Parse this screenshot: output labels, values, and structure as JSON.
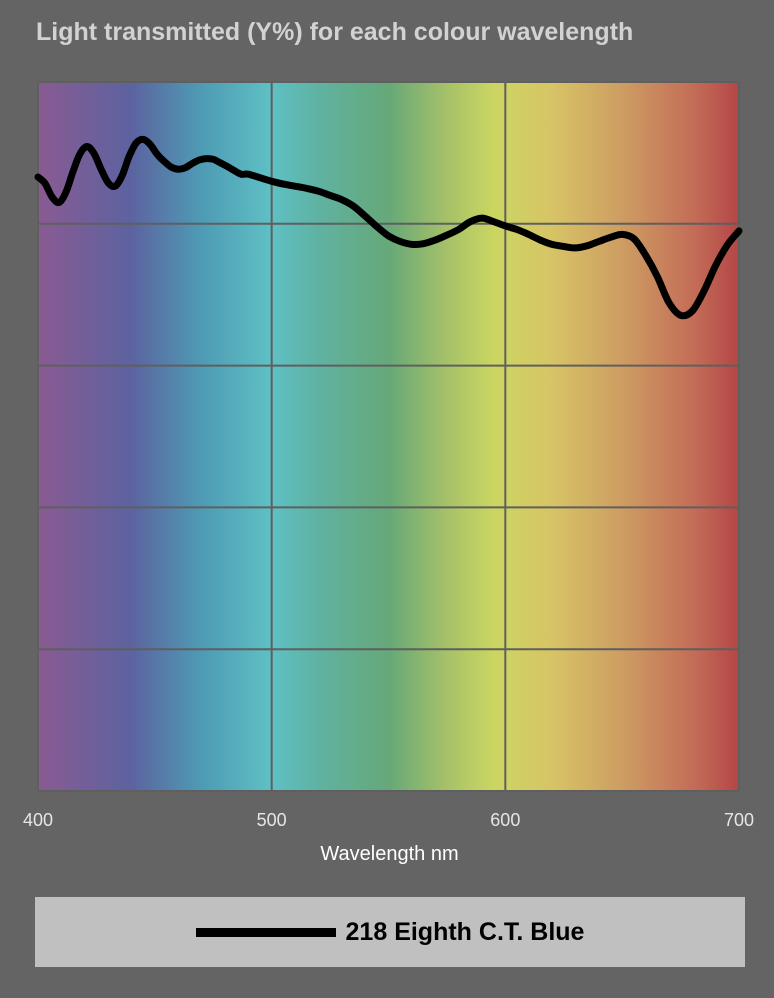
{
  "colors": {
    "background": "#646464",
    "title": "#d2d2d2",
    "grid": "#5f5f5f",
    "line": "#000000",
    "legend_bg": "#c0c0c0"
  },
  "chart_data": {
    "type": "line",
    "title": "Light transmitted (Y%) for each colour wavelength",
    "xlabel": "Wavelength nm",
    "ylabel": "",
    "xlim": [
      400,
      700
    ],
    "ylim": [
      0,
      100
    ],
    "x_ticks": [
      "400",
      "500",
      "600",
      "700"
    ],
    "grid": true,
    "legend_position": "bottom",
    "background": "visible spectrum gradient",
    "spectrum_stops": [
      {
        "wl": 400,
        "color": "#8a5a92"
      },
      {
        "wl": 440,
        "color": "#5c63a0"
      },
      {
        "wl": 470,
        "color": "#4e9bb4"
      },
      {
        "wl": 500,
        "color": "#5fc0c4"
      },
      {
        "wl": 520,
        "color": "#5fb2a2"
      },
      {
        "wl": 550,
        "color": "#66a878"
      },
      {
        "wl": 575,
        "color": "#a6c168"
      },
      {
        "wl": 595,
        "color": "#cbd662"
      },
      {
        "wl": 620,
        "color": "#d7c466"
      },
      {
        "wl": 650,
        "color": "#cd9d62"
      },
      {
        "wl": 680,
        "color": "#c46e58"
      },
      {
        "wl": 700,
        "color": "#b44646"
      }
    ],
    "series": [
      {
        "name": "218 Eighth C.T. Blue",
        "color": "#000000",
        "x": [
          400,
          403,
          406,
          409,
          412,
          415,
          418,
          421,
          424,
          427,
          430,
          433,
          436,
          439,
          442,
          445,
          448,
          451,
          454,
          457,
          460,
          463,
          466,
          469,
          472,
          475,
          478,
          481,
          484,
          487,
          490,
          495,
          500,
          505,
          510,
          515,
          520,
          525,
          530,
          535,
          540,
          545,
          550,
          555,
          560,
          565,
          570,
          575,
          580,
          585,
          590,
          595,
          600,
          605,
          610,
          615,
          620,
          625,
          630,
          635,
          640,
          645,
          650,
          655,
          660,
          665,
          670,
          675,
          680,
          685,
          690,
          695,
          700
        ],
        "values": [
          86.6,
          85.7,
          83.8,
          83.0,
          84.5,
          87.4,
          89.9,
          90.9,
          89.9,
          87.7,
          85.8,
          85.3,
          86.8,
          89.5,
          91.4,
          91.9,
          91.2,
          89.8,
          88.8,
          88.0,
          87.7,
          87.9,
          88.5,
          89.0,
          89.2,
          89.1,
          88.6,
          88.1,
          87.5,
          87.0,
          87.0,
          86.5,
          86.0,
          85.6,
          85.3,
          85.0,
          84.6,
          84.0,
          83.4,
          82.5,
          81.1,
          79.6,
          78.3,
          77.5,
          77.1,
          77.2,
          77.7,
          78.4,
          79.2,
          80.3,
          80.8,
          80.3,
          79.7,
          79.2,
          78.5,
          77.7,
          77.1,
          76.8,
          76.6,
          76.9,
          77.5,
          78.1,
          78.5,
          77.9,
          75.6,
          72.6,
          68.9,
          67.1,
          67.7,
          70.5,
          74.1,
          77.0,
          79.0
        ]
      }
    ]
  },
  "legend": {
    "label": "218 Eighth C.T. Blue"
  }
}
